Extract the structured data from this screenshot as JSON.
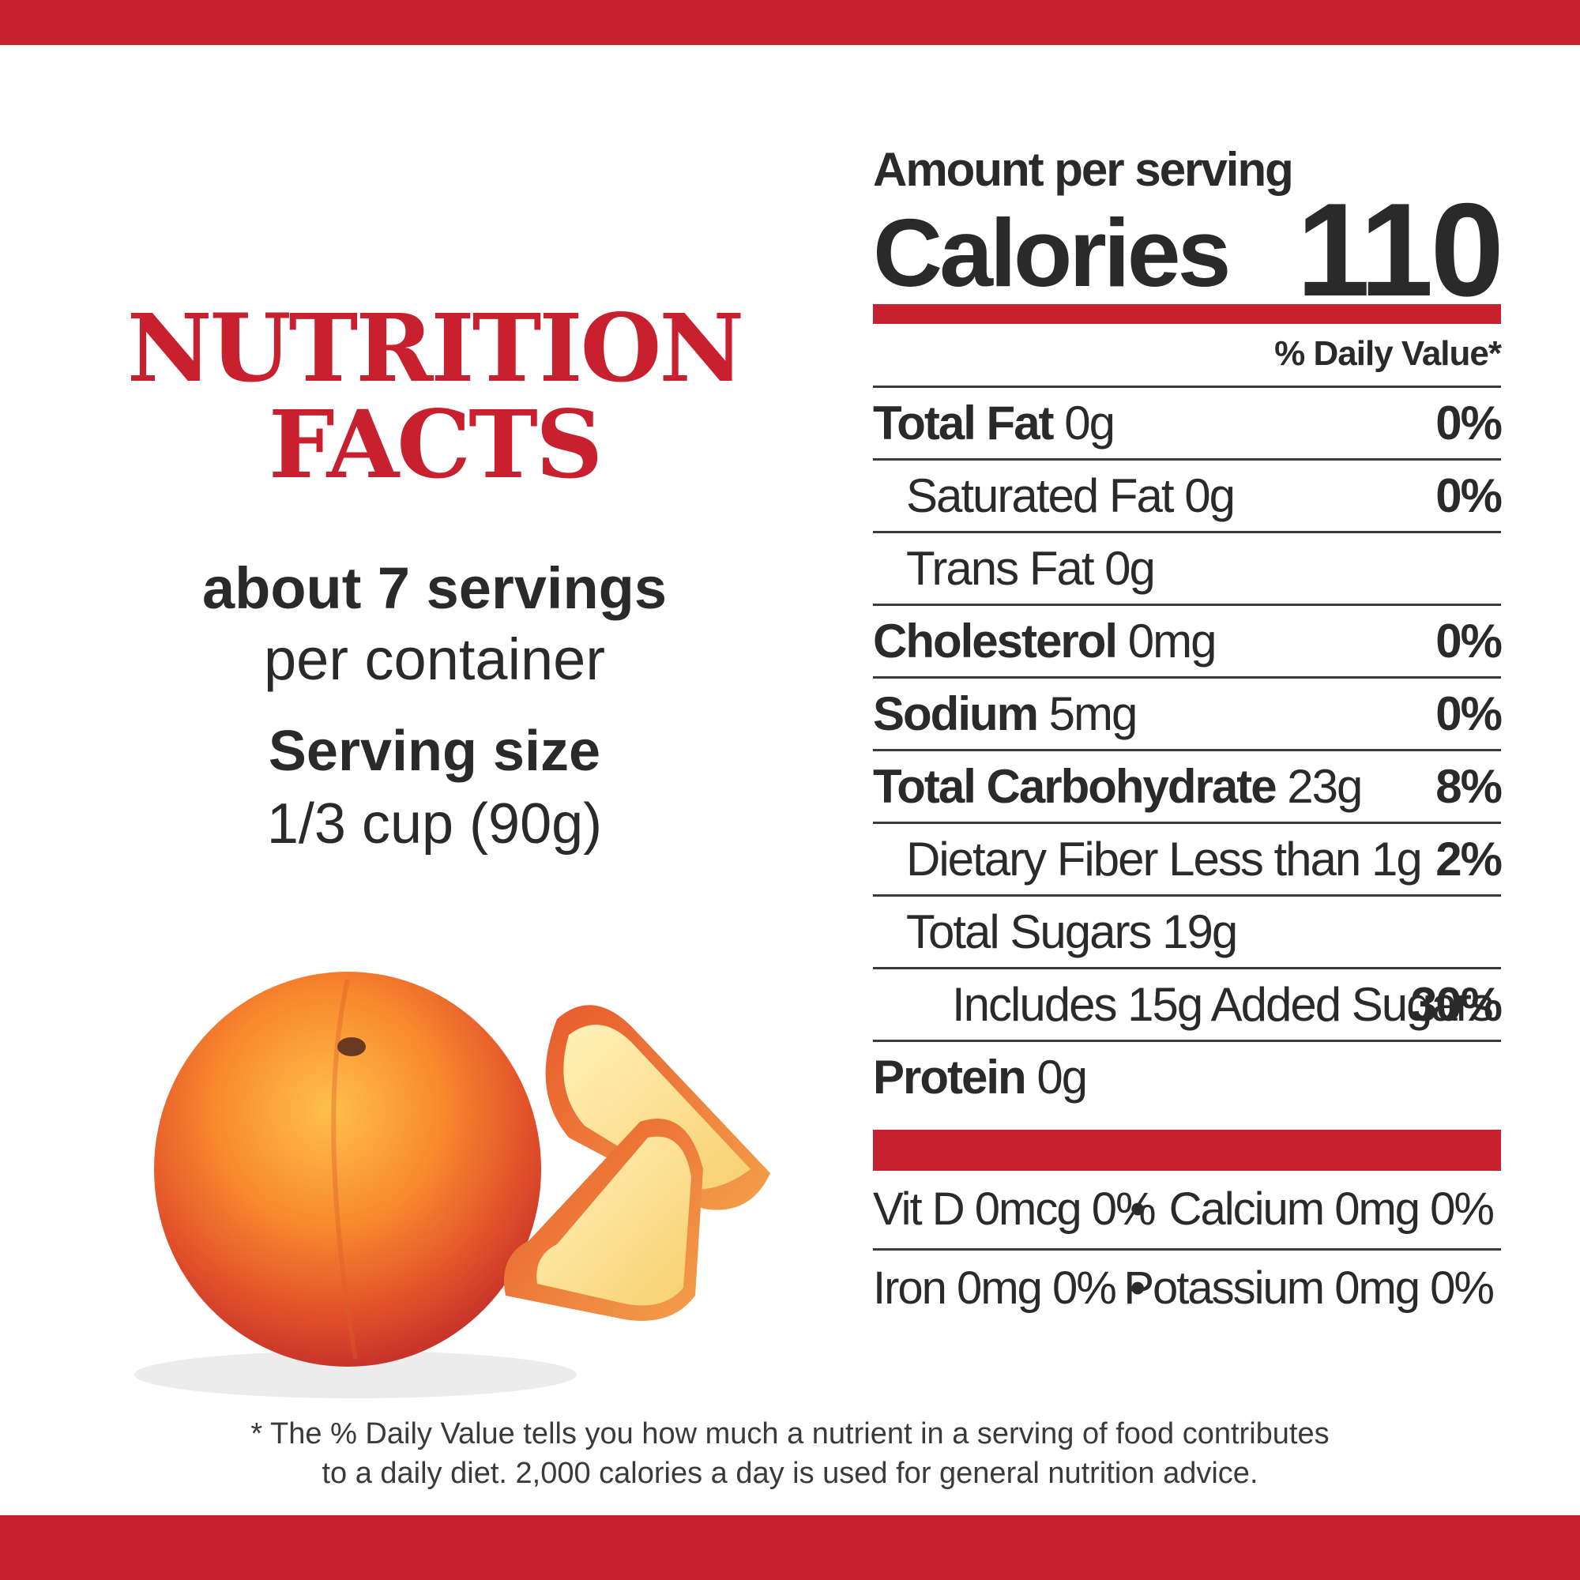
{
  "heading": {
    "line1": "NUTRITION",
    "line2": "FACTS"
  },
  "servings": {
    "count": "about 7 servings",
    "per": "per container"
  },
  "serving_size": {
    "label": "Serving size",
    "value": "1/3 cup (90g)"
  },
  "image": {
    "icon": "peach-fruit-image"
  },
  "panel": {
    "amount_per_serving": "Amount per serving",
    "calories_label": "Calories",
    "calories_value": "110",
    "daily_value_header": "% Daily Value*",
    "rows": [
      {
        "name": "Total Fat",
        "amount": " 0g",
        "pct": "0%"
      },
      {
        "name": "Saturated Fat 0g",
        "amount": "",
        "pct": "0%"
      },
      {
        "name": "Trans Fat 0g",
        "amount": "",
        "pct": ""
      },
      {
        "name": "Cholesterol",
        "amount": " 0mg",
        "pct": "0%"
      },
      {
        "name": "Sodium",
        "amount": " 5mg",
        "pct": "0%"
      },
      {
        "name": "Total Carbohydrate",
        "amount": " 23g",
        "pct": "8%"
      },
      {
        "name": "Dietary Fiber Less than 1g",
        "amount": "",
        "pct": "2%"
      },
      {
        "name": "Total Sugars 19g",
        "amount": "",
        "pct": ""
      },
      {
        "name": "Includes 15g Added Sugars",
        "amount": "",
        "pct": "30%"
      },
      {
        "name": "Protein",
        "amount": " 0g",
        "pct": ""
      }
    ],
    "micronutrients": [
      {
        "left": "Vit D 0mcg 0%",
        "dot": "•",
        "right": "Calcium 0mg 0%"
      },
      {
        "left": "Iron 0mg 0%",
        "dot": "•",
        "right": "Potassium 0mg 0%"
      }
    ]
  },
  "footnote": {
    "line1": "* The % Daily Value tells you how much a nutrient in a serving of food contributes",
    "line2": "to a daily diet. 2,000 calories a day is used for general nutrition advice."
  },
  "colors": {
    "brand_red": "#c8202f",
    "text": "#2a2a2a"
  }
}
